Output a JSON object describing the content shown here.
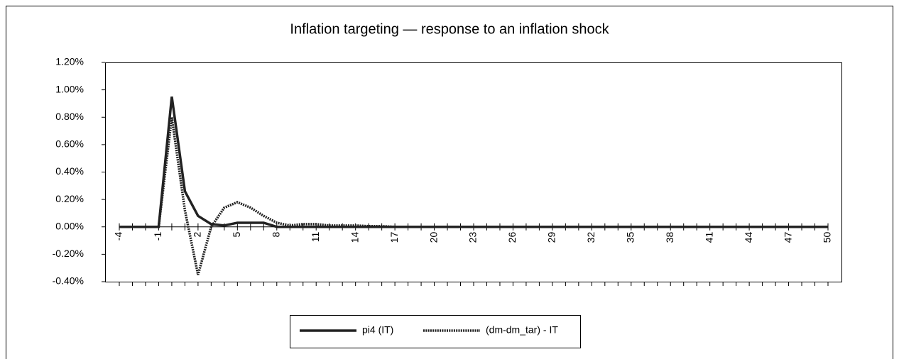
{
  "chart_data": {
    "type": "line",
    "title": "Inflation targeting — response to an inflation shock",
    "x": [
      -4,
      -3,
      -2,
      -1,
      0,
      1,
      2,
      3,
      4,
      5,
      6,
      7,
      8,
      9,
      10,
      11,
      12,
      13,
      14,
      15,
      16,
      17,
      18,
      19,
      20,
      21,
      22,
      23,
      24,
      25,
      26,
      27,
      28,
      29,
      30,
      31,
      32,
      33,
      34,
      35,
      36,
      37,
      38,
      39,
      40,
      41,
      42,
      43,
      44,
      45,
      46,
      47,
      48,
      49,
      50
    ],
    "xlim": [
      -4,
      50
    ],
    "xticks": [
      -4,
      -1,
      2,
      5,
      8,
      11,
      14,
      17,
      20,
      23,
      26,
      29,
      32,
      35,
      38,
      41,
      44,
      47,
      50
    ],
    "ylim": [
      -0.4,
      1.2
    ],
    "yticks": [
      {
        "value": -0.4,
        "label": "-0.40%"
      },
      {
        "value": -0.2,
        "label": "-0.20%"
      },
      {
        "value": 0,
        "label": "0.00%"
      },
      {
        "value": 0.2,
        "label": "0.20%"
      },
      {
        "value": 0.4,
        "label": "0.40%"
      },
      {
        "value": 0.6,
        "label": "0.60%"
      },
      {
        "value": 0.8,
        "label": "0.80%"
      },
      {
        "value": 1.0,
        "label": "1.00%"
      },
      {
        "value": 1.2,
        "label": "1.20%"
      }
    ],
    "legend": "bottom",
    "series": [
      {
        "name": "pi4 (IT)",
        "color": "#222222",
        "style": "solid",
        "values": [
          0,
          0,
          0,
          0,
          0.95,
          0.26,
          0.08,
          0.02,
          0.01,
          0.03,
          0.03,
          0.03,
          0,
          0,
          0,
          0,
          0,
          0,
          0,
          0,
          0,
          0,
          0,
          0,
          0,
          0,
          0,
          0,
          0,
          0,
          0,
          0,
          0,
          0,
          0,
          0,
          0,
          0,
          0,
          0,
          0,
          0,
          0,
          0,
          0,
          0,
          0,
          0,
          0,
          0,
          0,
          0,
          0,
          0,
          0
        ]
      },
      {
        "name": "(dm-dm_tar) - IT",
        "color": "#222222",
        "style": "dotted",
        "values": [
          0,
          0,
          0,
          0,
          0.8,
          0.12,
          -0.35,
          0,
          0.14,
          0.18,
          0.14,
          0.08,
          0.03,
          0.01,
          0.02,
          0.02,
          0.01,
          0.01,
          0.01,
          0.005,
          0.005,
          0,
          0,
          0,
          0,
          0,
          0,
          0,
          0,
          0,
          0,
          0,
          0,
          0,
          0,
          0,
          0,
          0,
          0,
          0,
          0,
          0,
          0,
          0,
          0,
          0,
          0,
          0,
          0,
          0,
          0,
          0,
          0,
          0,
          0
        ]
      }
    ]
  }
}
